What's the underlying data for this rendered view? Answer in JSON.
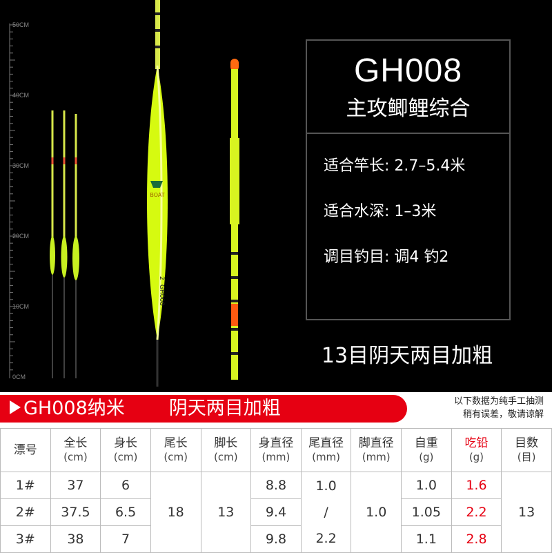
{
  "ruler_labels": [
    "50CM",
    "40CM",
    "30CM",
    "20CM",
    "10CM",
    "0CM"
  ],
  "float_labels": [
    "BOAT",
    "2",
    "GH008"
  ],
  "spec_box": {
    "model": "GH008",
    "subtitle": "主攻鲫鲤综合",
    "specs": [
      "适合竿长: 2.7–5.4米",
      "适合水深: 1–3米",
      "调目钓目: 调4 钓2"
    ]
  },
  "caption": "13目阴天两目加粗",
  "banner": {
    "title": "GH008纳米",
    "subtitle": "阴天两目加粗",
    "note": [
      "以下数据为纯手工抽测",
      "稍有误差，敬请谅解"
    ]
  },
  "table": {
    "headers": [
      {
        "label": "漂号"
      },
      {
        "label": "全长",
        "unit": "(cm)"
      },
      {
        "label": "身长",
        "unit": "(cm)"
      },
      {
        "label": "尾长",
        "unit": "(cm)"
      },
      {
        "label": "脚长",
        "unit": "(cm)"
      },
      {
        "label": "身直径",
        "unit": "(mm)"
      },
      {
        "label": "尾直径",
        "unit": "(mm)"
      },
      {
        "label": "脚直径",
        "unit": "(mm)"
      },
      {
        "label": "自重",
        "unit": "(g)"
      },
      {
        "label": "吃铅",
        "unit": "(g)"
      },
      {
        "label": "目数",
        "unit": "(目)"
      }
    ],
    "rows": [
      [
        "1#",
        "37",
        "6",
        "8.8",
        "1.0",
        "1.6"
      ],
      [
        "2#",
        "37.5",
        "6.5",
        "9.4",
        "1.05",
        "2.2"
      ],
      [
        "3#",
        "38",
        "7",
        "9.8",
        "1.1",
        "2.8"
      ]
    ],
    "merged": {
      "tail_length": "18",
      "foot_length": "13",
      "tail_diameter": [
        "1.0",
        "/",
        "2.2"
      ],
      "foot_diameter": "1.0",
      "mesh": "13"
    }
  }
}
